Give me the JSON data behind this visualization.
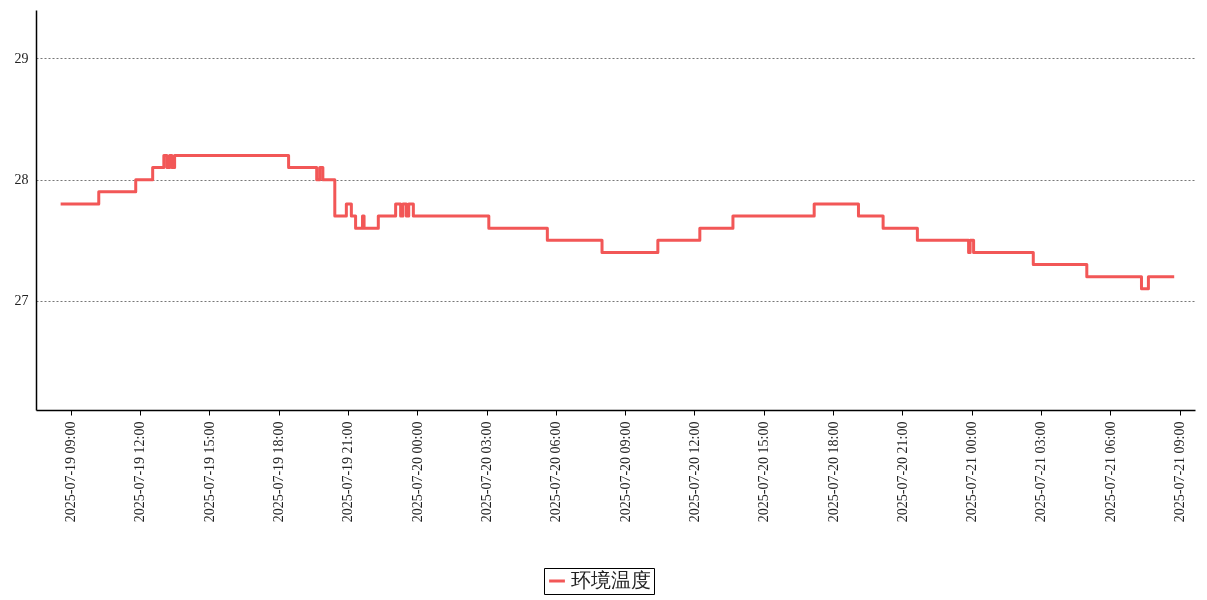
{
  "chart_data": {
    "type": "step",
    "ylim": [
      26.1,
      29.4
    ],
    "yticks": [
      27,
      28,
      29
    ],
    "xlim": [
      "2025-07-19T07:30",
      "2025-07-21T09:40"
    ],
    "xticks": [
      {
        "value": "2025-07-19T09:00",
        "label": "2025-07-19  09:00"
      },
      {
        "value": "2025-07-19T12:00",
        "label": "2025-07-19  12:00"
      },
      {
        "value": "2025-07-19T15:00",
        "label": "2025-07-19  15:00"
      },
      {
        "value": "2025-07-19T18:00",
        "label": "2025-07-19  18:00"
      },
      {
        "value": "2025-07-19T21:00",
        "label": "2025-07-19  21:00"
      },
      {
        "value": "2025-07-20T00:00",
        "label": "2025-07-20  00:00"
      },
      {
        "value": "2025-07-20T03:00",
        "label": "2025-07-20  03:00"
      },
      {
        "value": "2025-07-20T06:00",
        "label": "2025-07-20  06:00"
      },
      {
        "value": "2025-07-20T09:00",
        "label": "2025-07-20  09:00"
      },
      {
        "value": "2025-07-20T12:00",
        "label": "2025-07-20  12:00"
      },
      {
        "value": "2025-07-20T15:00",
        "label": "2025-07-20  15:00"
      },
      {
        "value": "2025-07-20T18:00",
        "label": "2025-07-20  18:00"
      },
      {
        "value": "2025-07-20T21:00",
        "label": "2025-07-20  21:00"
      },
      {
        "value": "2025-07-21T00:00",
        "label": "2025-07-21  00:00"
      },
      {
        "value": "2025-07-21T03:00",
        "label": "2025-07-21  03:00"
      },
      {
        "value": "2025-07-21T06:00",
        "label": "2025-07-21  06:00"
      },
      {
        "value": "2025-07-21T09:00",
        "label": "2025-07-21  09:00"
      }
    ],
    "grid": "y",
    "legend": "bottom",
    "x": [
      "2025-07-19T08:34",
      "2025-07-19T10:13",
      "2025-07-19T11:49",
      "2025-07-19T12:33",
      "2025-07-19T13:02",
      "2025-07-19T13:10",
      "2025-07-19T13:17",
      "2025-07-19T13:23",
      "2025-07-19T13:30",
      "2025-07-19T18:26",
      "2025-07-19T19:39",
      "2025-07-19T19:47",
      "2025-07-19T19:55",
      "2025-07-19T20:26",
      "2025-07-19T20:56",
      "2025-07-19T21:09",
      "2025-07-19T21:20",
      "2025-07-19T21:38",
      "2025-07-19T21:42",
      "2025-07-19T22:19",
      "2025-07-19T23:04",
      "2025-07-19T23:17",
      "2025-07-19T23:23",
      "2025-07-19T23:32",
      "2025-07-19T23:38",
      "2025-07-19T23:50",
      "2025-07-20T03:06",
      "2025-07-20T05:38",
      "2025-07-20T08:00",
      "2025-07-20T10:25",
      "2025-07-20T12:14",
      "2025-07-20T13:40",
      "2025-07-20T17:11",
      "2025-07-20T19:06",
      "2025-07-20T20:10",
      "2025-07-20T21:39",
      "2025-07-20T23:52",
      "2025-07-20T23:56",
      "2025-07-21T00:05",
      "2025-07-21T02:40",
      "2025-07-21T04:59",
      "2025-07-21T07:21",
      "2025-07-21T07:39",
      "2025-07-21T08:46"
    ],
    "series": [
      {
        "name": "环境温度",
        "color": "#f25757",
        "values": [
          27.8,
          27.9,
          28.0,
          28.1,
          28.2,
          28.1,
          28.2,
          28.1,
          28.2,
          28.1,
          28.0,
          28.1,
          28.0,
          27.7,
          27.8,
          27.7,
          27.6,
          27.7,
          27.6,
          27.7,
          27.8,
          27.7,
          27.8,
          27.7,
          27.8,
          27.7,
          27.6,
          27.5,
          27.4,
          27.5,
          27.6,
          27.7,
          27.8,
          27.7,
          27.6,
          27.5,
          27.4,
          27.5,
          27.4,
          27.3,
          27.2,
          27.1,
          27.2,
          27.2
        ]
      }
    ]
  }
}
